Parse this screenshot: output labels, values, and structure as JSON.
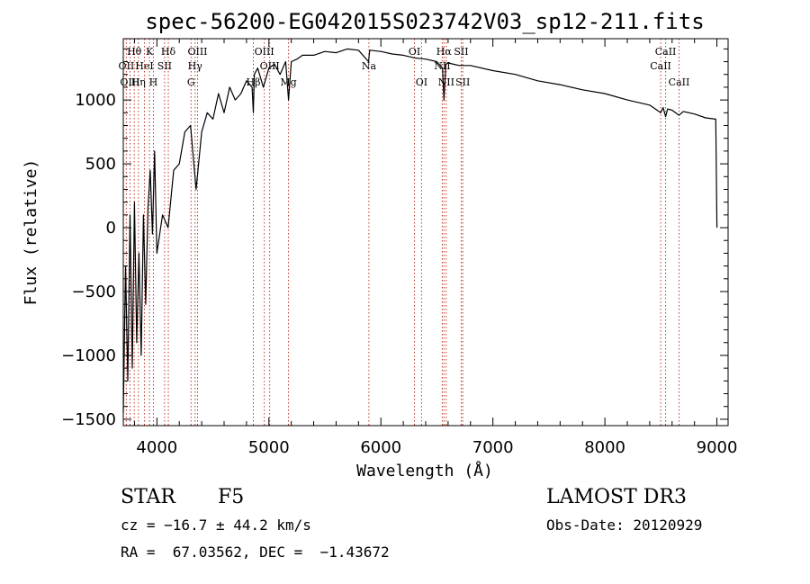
{
  "chart_data": {
    "type": "line",
    "title": "spec-56200-EG042015S023742V03_sp12-211.fits",
    "xlabel": "Wavelength (Å)",
    "ylabel": "Flux (relative)",
    "xlim": [
      3700,
      9100
    ],
    "ylim": [
      -1550,
      1480
    ],
    "xticks": [
      4000,
      5000,
      6000,
      7000,
      8000,
      9000
    ],
    "xtick_labels": [
      "4000",
      "5000",
      "6000",
      "7000",
      "8000",
      "9000"
    ],
    "yticks": [
      -1500,
      -1000,
      -500,
      0,
      500,
      1000
    ],
    "ytick_labels": [
      "−1500",
      "−1000",
      "−500",
      "0",
      "500",
      "1000"
    ],
    "series": [
      {
        "name": "spectrum",
        "x": [
          3700,
          3720,
          3740,
          3760,
          3780,
          3800,
          3820,
          3840,
          3860,
          3880,
          3900,
          3920,
          3940,
          3960,
          3980,
          4000,
          4050,
          4100,
          4150,
          4200,
          4250,
          4300,
          4350,
          4400,
          4450,
          4500,
          4550,
          4600,
          4650,
          4700,
          4750,
          4800,
          4850,
          4861,
          4870,
          4900,
          4950,
          5000,
          5050,
          5100,
          5150,
          5175,
          5200,
          5250,
          5300,
          5400,
          5500,
          5600,
          5700,
          5800,
          5890,
          5900,
          6000,
          6100,
          6200,
          6300,
          6400,
          6500,
          6550,
          6563,
          6580,
          6600,
          6700,
          6800,
          7000,
          7200,
          7400,
          7600,
          7800,
          8000,
          8200,
          8400,
          8498,
          8520,
          8542,
          8560,
          8600,
          8662,
          8700,
          8800,
          8900,
          8990,
          9000
        ],
        "y": [
          -1450,
          -300,
          -1200,
          100,
          -1100,
          200,
          -900,
          -200,
          -1000,
          100,
          -600,
          150,
          450,
          -50,
          600,
          -200,
          100,
          0,
          450,
          500,
          750,
          800,
          300,
          750,
          900,
          850,
          1050,
          900,
          1100,
          1000,
          1050,
          1150,
          1100,
          900,
          1200,
          1250,
          1100,
          1250,
          1280,
          1200,
          1300,
          1000,
          1300,
          1320,
          1350,
          1350,
          1380,
          1370,
          1400,
          1390,
          1300,
          1390,
          1380,
          1360,
          1350,
          1330,
          1320,
          1300,
          1250,
          1000,
          1280,
          1290,
          1270,
          1270,
          1230,
          1200,
          1150,
          1120,
          1080,
          1050,
          1000,
          960,
          900,
          940,
          870,
          930,
          920,
          880,
          910,
          890,
          860,
          850,
          0
        ]
      }
    ],
    "line_annotations": [
      {
        "label": "Hθ",
        "wave": 3798,
        "row": 1
      },
      {
        "label": "OII",
        "wave": 3727,
        "row": 2
      },
      {
        "label": "OIII",
        "wave": 3760,
        "row": 3
      },
      {
        "label": "Hη",
        "wave": 3835,
        "row": 3
      },
      {
        "label": "K",
        "wave": 3934,
        "row": 1
      },
      {
        "label": "HeI",
        "wave": 3889,
        "row": 2
      },
      {
        "label": "SII",
        "wave": 4069,
        "row": 2
      },
      {
        "label": "H",
        "wave": 3969,
        "row": 3
      },
      {
        "label": "Hδ",
        "wave": 4102,
        "row": 1
      },
      {
        "label": "OIII",
        "wave": 4363,
        "row": 1
      },
      {
        "label": "Hγ",
        "wave": 4341,
        "row": 2
      },
      {
        "label": "G",
        "wave": 4305,
        "row": 3
      },
      {
        "label": "OIII",
        "wave": 4959,
        "row": 1
      },
      {
        "label": "OIII",
        "wave": 5007,
        "row": 2
      },
      {
        "label": "Hβ",
        "wave": 4861,
        "row": 3
      },
      {
        "label": "Mg",
        "wave": 5175,
        "row": 3
      },
      {
        "label": "Na",
        "wave": 5893,
        "row": 2
      },
      {
        "label": "OI",
        "wave": 6300,
        "row": 1
      },
      {
        "label": "OI",
        "wave": 6363,
        "row": 3
      },
      {
        "label": "Hα",
        "wave": 6563,
        "row": 1
      },
      {
        "label": "NII",
        "wave": 6548,
        "row": 2
      },
      {
        "label": "NII",
        "wave": 6583,
        "row": 3
      },
      {
        "label": "SII",
        "wave": 6717,
        "row": 1
      },
      {
        "label": "SII",
        "wave": 6731,
        "row": 3
      },
      {
        "label": "CaII",
        "wave": 8542,
        "row": 1
      },
      {
        "label": "CaII",
        "wave": 8498,
        "row": 2
      },
      {
        "label": "CaII",
        "wave": 8662,
        "row": 3
      }
    ]
  },
  "footer": {
    "object_type": "STAR",
    "subclass": "F5",
    "survey": "LAMOST DR3",
    "redshift": "cz = −16.7 ± 44.2 km/s",
    "obs_date": "Obs-Date: 20120929",
    "coords": "RA =  67.03562, DEC =  −1.43672"
  }
}
